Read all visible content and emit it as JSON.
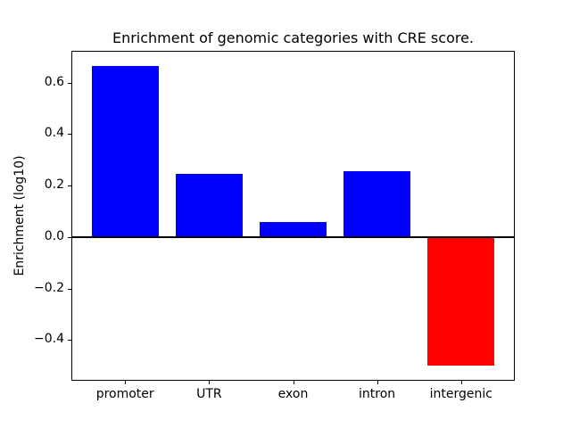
{
  "figure": {
    "background": "#ffffff"
  },
  "chart_data": {
    "type": "bar",
    "title": "Enrichment of genomic categories with CRE score.",
    "xlabel": "",
    "ylabel": "Enrichment (log10)",
    "categories": [
      "promoter",
      "UTR",
      "exon",
      "intron",
      "intergenic"
    ],
    "values": [
      0.665,
      0.245,
      0.06,
      0.255,
      -0.5
    ],
    "ylim": [
      -0.558,
      0.723
    ],
    "yticks": [
      0.6,
      0.4,
      0.2,
      0.0,
      -0.2,
      -0.4
    ],
    "ytick_labels": [
      "0.6",
      "0.4",
      "0.2",
      "0.0",
      "−0.2",
      "−0.4"
    ],
    "bar_width_fraction": 0.8,
    "grid": false,
    "legend": null,
    "zero_line": true,
    "colors": {
      "positive_bar": "#0000ff",
      "negative_bar": "#ff0000",
      "axis": "#000000",
      "zero_line": "#000000",
      "text": "#000000"
    }
  }
}
